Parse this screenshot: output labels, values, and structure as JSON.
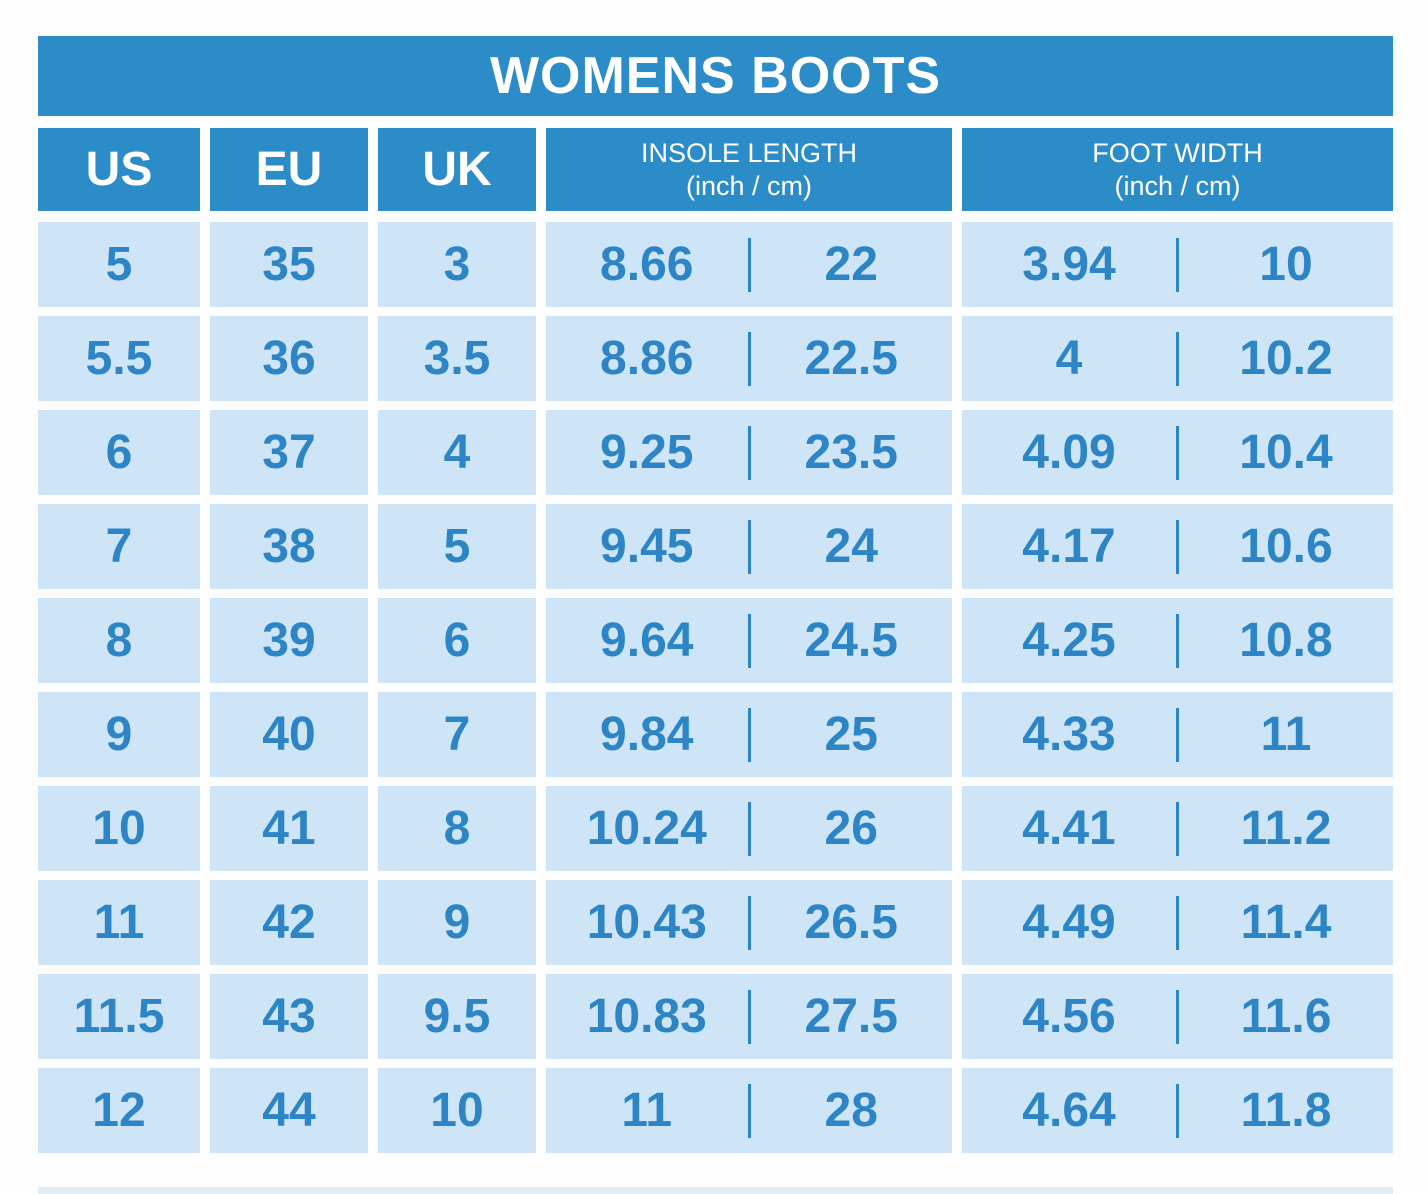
{
  "chart_data": {
    "type": "table",
    "title": "WOMENS BOOTS",
    "column_groups": [
      {
        "key": "us",
        "label": "US"
      },
      {
        "key": "eu",
        "label": "EU"
      },
      {
        "key": "uk",
        "label": "UK"
      },
      {
        "key": "insole_length",
        "label": "INSOLE LENGTH",
        "sublabel": "(inch / cm)"
      },
      {
        "key": "foot_width",
        "label": "FOOT WIDTH",
        "sublabel": "(inch / cm)"
      }
    ],
    "rows": [
      {
        "us": "5",
        "eu": "35",
        "uk": "3",
        "insole_inch": "8.66",
        "insole_cm": "22",
        "width_inch": "3.94",
        "width_cm": "10"
      },
      {
        "us": "5.5",
        "eu": "36",
        "uk": "3.5",
        "insole_inch": "8.86",
        "insole_cm": "22.5",
        "width_inch": "4",
        "width_cm": "10.2"
      },
      {
        "us": "6",
        "eu": "37",
        "uk": "4",
        "insole_inch": "9.25",
        "insole_cm": "23.5",
        "width_inch": "4.09",
        "width_cm": "10.4"
      },
      {
        "us": "7",
        "eu": "38",
        "uk": "5",
        "insole_inch": "9.45",
        "insole_cm": "24",
        "width_inch": "4.17",
        "width_cm": "10.6"
      },
      {
        "us": "8",
        "eu": "39",
        "uk": "6",
        "insole_inch": "9.64",
        "insole_cm": "24.5",
        "width_inch": "4.25",
        "width_cm": "10.8"
      },
      {
        "us": "9",
        "eu": "40",
        "uk": "7",
        "insole_inch": "9.84",
        "insole_cm": "25",
        "width_inch": "4.33",
        "width_cm": "11"
      },
      {
        "us": "10",
        "eu": "41",
        "uk": "8",
        "insole_inch": "10.24",
        "insole_cm": "26",
        "width_inch": "4.41",
        "width_cm": "11.2"
      },
      {
        "us": "11",
        "eu": "42",
        "uk": "9",
        "insole_inch": "10.43",
        "insole_cm": "26.5",
        "width_inch": "4.49",
        "width_cm": "11.4"
      },
      {
        "us": "11.5",
        "eu": "43",
        "uk": "9.5",
        "insole_inch": "10.83",
        "insole_cm": "27.5",
        "width_inch": "4.56",
        "width_cm": "11.6"
      },
      {
        "us": "12",
        "eu": "44",
        "uk": "10",
        "insole_inch": "11",
        "insole_cm": "28",
        "width_inch": "4.64",
        "width_cm": "11.8"
      }
    ]
  },
  "colors": {
    "header_blue": "#2b8cc8",
    "cell_blue": "#cde5f6",
    "value_blue": "#2d85c5",
    "title_text": "#ffffff",
    "background": "#fdfdfd"
  }
}
